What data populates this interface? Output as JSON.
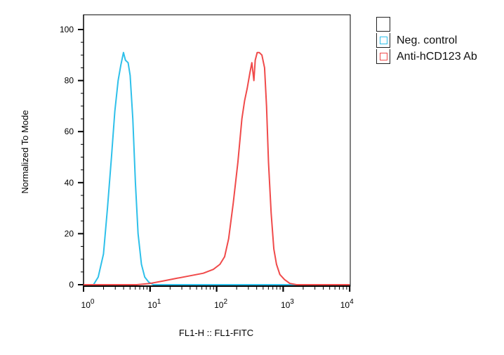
{
  "chart_data": {
    "type": "line",
    "title": "",
    "xlabel": "FL1-H :: FL1-FITC",
    "ylabel": "Normalized To Mode",
    "xscale": "log",
    "xlim": [
      1,
      10000
    ],
    "ylim": [
      0,
      100
    ],
    "xticks": [
      {
        "base": "10",
        "exp": "0"
      },
      {
        "base": "10",
        "exp": "1"
      },
      {
        "base": "10",
        "exp": "2"
      },
      {
        "base": "10",
        "exp": "3"
      },
      {
        "base": "10",
        "exp": "4"
      }
    ],
    "yticks": [
      "0",
      "20",
      "40",
      "60",
      "80",
      "100"
    ],
    "legend_position": "top-right",
    "series": [
      {
        "name": "Neg. control",
        "color": "#2ec0ea",
        "log10x": [
          0,
          0.15,
          0.22,
          0.3,
          0.36,
          0.42,
          0.47,
          0.52,
          0.56,
          0.6,
          0.63,
          0.67,
          0.7,
          0.74,
          0.78,
          0.82,
          0.87,
          0.92,
          0.98,
          1.05,
          1.12,
          4
        ],
        "y": [
          0,
          0,
          3,
          12,
          30,
          50,
          68,
          80,
          86,
          91,
          88,
          87,
          82,
          65,
          40,
          20,
          8,
          3,
          1,
          0,
          0,
          0
        ]
      },
      {
        "name": "Anti-hCD123 Ab",
        "color": "#f04a4a",
        "log10x": [
          0,
          0.8,
          1.0,
          1.2,
          1.4,
          1.6,
          1.8,
          1.95,
          2.05,
          2.12,
          2.18,
          2.25,
          2.32,
          2.38,
          2.42,
          2.46,
          2.5,
          2.53,
          2.56,
          2.58,
          2.61,
          2.64,
          2.68,
          2.72,
          2.75,
          2.78,
          2.82,
          2.86,
          2.9,
          2.95,
          3.02,
          3.1,
          3.2,
          3.35,
          4
        ],
        "y": [
          0,
          0,
          0.5,
          1.5,
          2.5,
          3.5,
          4.5,
          6,
          8,
          11,
          18,
          32,
          48,
          65,
          72,
          77,
          83,
          87,
          80,
          88,
          91,
          91,
          90,
          85,
          70,
          48,
          28,
          14,
          8,
          4,
          2,
          0.5,
          0,
          0,
          0
        ]
      }
    ]
  },
  "legend": {
    "items": [
      "Neg. control",
      "Anti-hCD123 Ab"
    ]
  }
}
